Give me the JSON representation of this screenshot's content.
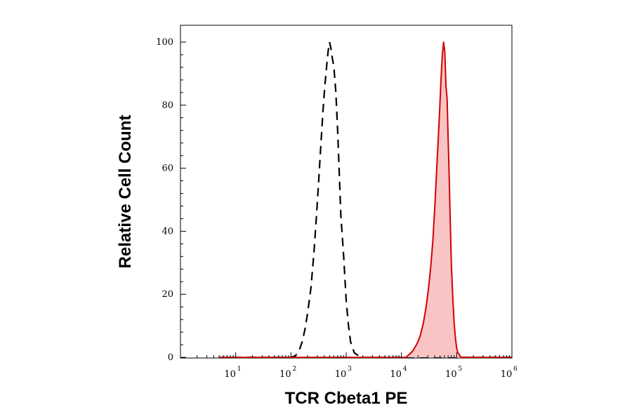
{
  "chart_data": {
    "type": "area",
    "xlabel": "TCR Cbeta1 PE",
    "ylabel": "Relative Cell Count",
    "x_scale": "log10",
    "xlim": [
      1,
      1000000
    ],
    "ylim": [
      0,
      100
    ],
    "x_ticks": [
      {
        "base": "10",
        "exp": "1"
      },
      {
        "base": "10",
        "exp": "2"
      },
      {
        "base": "10",
        "exp": "3"
      },
      {
        "base": "10",
        "exp": "4"
      },
      {
        "base": "10",
        "exp": "5"
      },
      {
        "base": "10",
        "exp": "6"
      }
    ],
    "y_ticks": [
      "0",
      "20",
      "40",
      "60",
      "80",
      "100"
    ],
    "grid": false,
    "series": [
      {
        "style": "dashed-line",
        "color": "#000000",
        "x": [
          5,
          100,
          120,
          140,
          160,
          180,
          200,
          230,
          260,
          290,
          320,
          350,
          380,
          410,
          440,
          470,
          500,
          530,
          560,
          600,
          650,
          700,
          750,
          800,
          900,
          1000,
          1100,
          1200,
          1300,
          1400,
          1500,
          1700,
          2000,
          1000000
        ],
        "y": [
          0,
          0,
          0.5,
          2,
          5,
          9,
          14,
          22,
          33,
          45,
          57,
          68,
          78,
          86,
          92,
          97,
          100,
          98,
          95,
          92,
          84,
          72,
          58,
          45,
          32,
          18,
          10,
          5,
          3,
          1.5,
          1,
          0.5,
          0,
          0
        ]
      },
      {
        "style": "filled",
        "color": "#d40000",
        "fill": "#f9c4c4",
        "x": [
          5,
          12000,
          14000,
          16000,
          18000,
          20000,
          22000,
          25000,
          28000,
          31000,
          34000,
          37000,
          40000,
          43000,
          46000,
          49000,
          52000,
          55000,
          58000,
          61000,
          64000,
          67000,
          70000,
          73000,
          76000,
          80000,
          85000,
          90000,
          95000,
          100000,
          105000,
          110000,
          115000,
          120000,
          1000000
        ],
        "y": [
          0,
          0,
          1,
          2,
          3.5,
          5,
          7,
          11,
          16,
          22,
          29,
          37,
          47,
          58,
          68,
          78,
          88,
          96,
          100,
          97,
          86,
          82,
          70,
          58,
          45,
          30,
          19,
          11,
          6,
          3,
          1.5,
          1,
          0.5,
          0,
          0
        ]
      }
    ]
  }
}
